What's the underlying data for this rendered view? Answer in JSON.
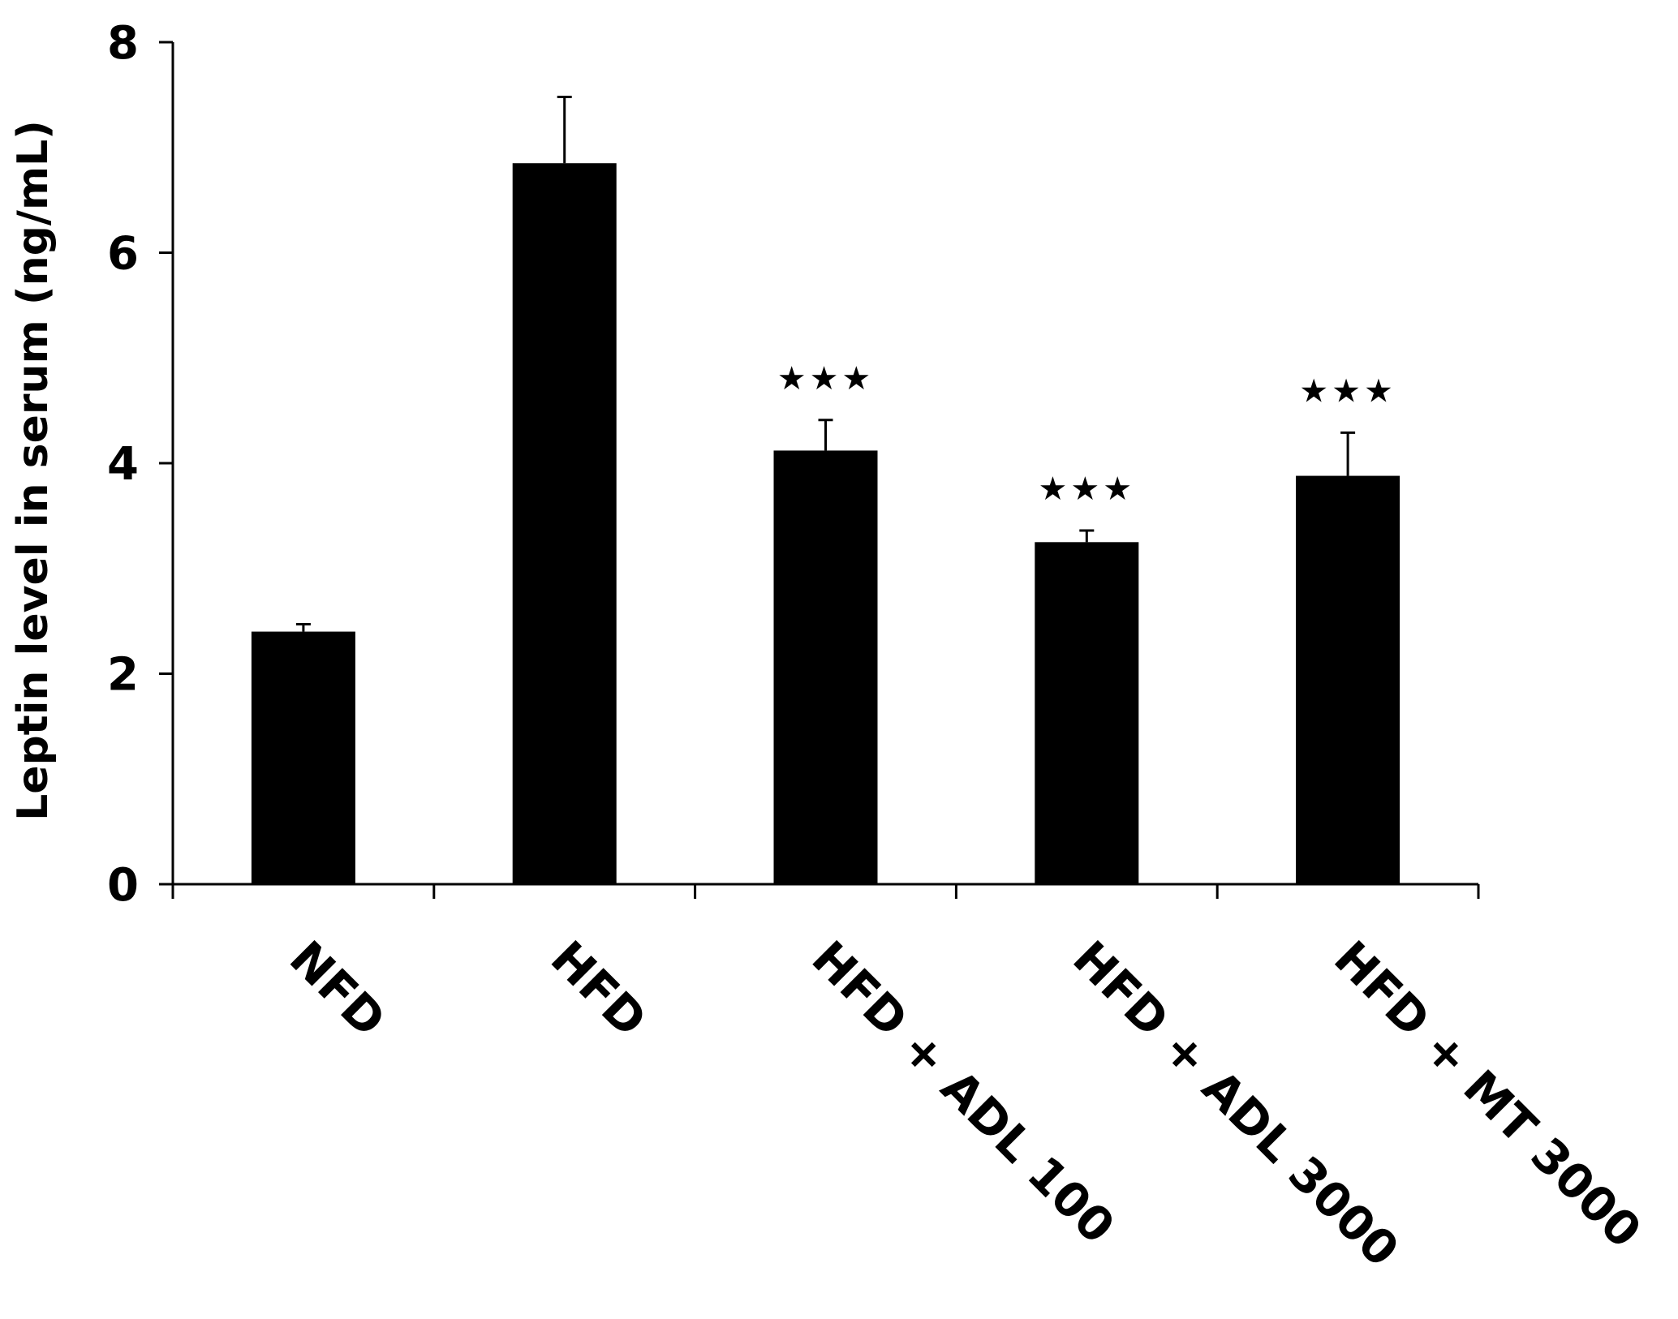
{
  "chart_data": {
    "type": "bar",
    "title": "",
    "xlabel": "",
    "ylabel": "Leptin level in serum (ng/mL)",
    "ylim": [
      0,
      8
    ],
    "yticks": [
      0,
      2,
      4,
      6,
      8
    ],
    "grid": false,
    "categories": [
      "NFD",
      "HFD",
      "HFD + ADL 100",
      "HFD + ADL 3000",
      "HFD + MT 3000"
    ],
    "values": [
      2.4,
      6.85,
      4.12,
      3.25,
      3.88
    ],
    "errors": [
      0.07,
      0.63,
      0.29,
      0.11,
      0.41
    ],
    "annotations": [
      "",
      "",
      "★★★",
      "★★★",
      "★★★"
    ],
    "colors": {
      "bar": "#000000",
      "axis": "#000000"
    }
  }
}
